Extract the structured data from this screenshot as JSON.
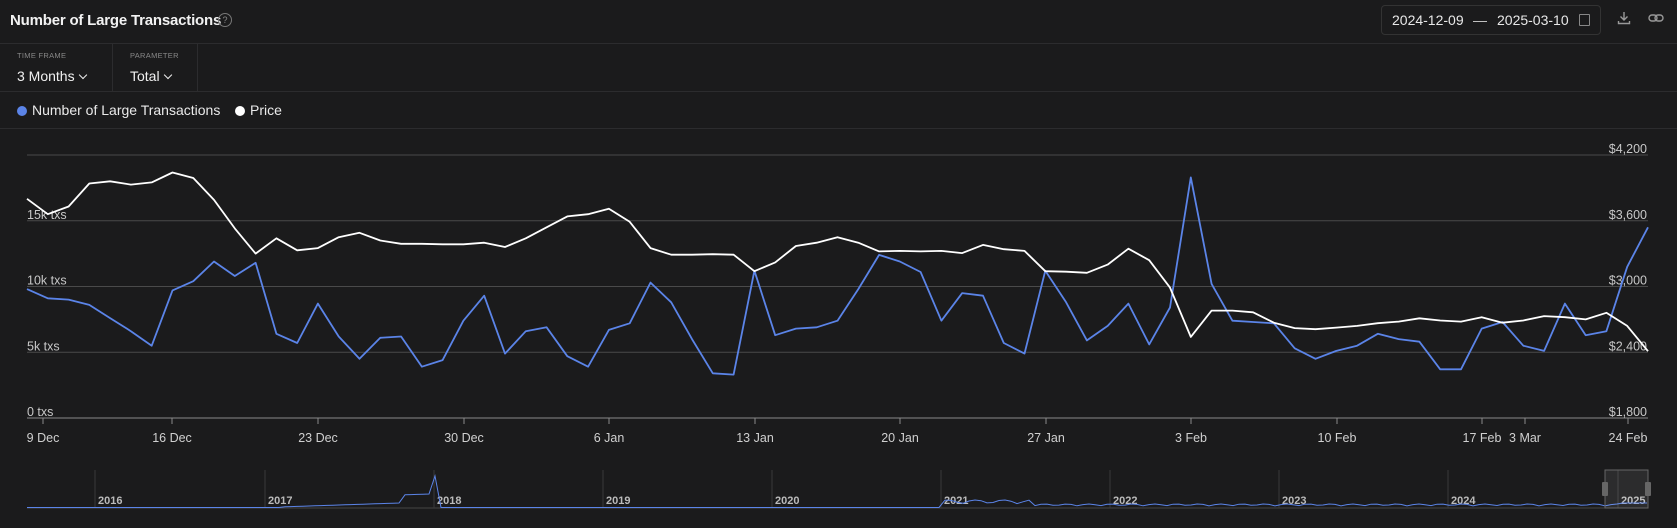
{
  "header": {
    "title": "Number of Large Transactions",
    "help_icon": "question-circle-icon",
    "date_from": "2024-12-09",
    "date_sep": "—",
    "date_to": "2025-03-10",
    "calendar_icon": "calendar-icon",
    "download_icon": "download-icon",
    "link_icon": "link-icon"
  },
  "controls": {
    "time_frame": {
      "label": "TIME FRAME",
      "value": "3 Months"
    },
    "parameter": {
      "label": "PARAMETER",
      "value": "Total"
    }
  },
  "colors": {
    "transactions": "#5b84e8",
    "price": "#ffffff",
    "background": "#1b1b1c",
    "grid": "#555555"
  },
  "chart_data": {
    "type": "line",
    "legend": [
      "Number of Large Transactions",
      "Price"
    ],
    "x_ticks": [
      "9 Dec",
      "16 Dec",
      "23 Dec",
      "30 Dec",
      "6 Jan",
      "13 Jan",
      "20 Jan",
      "27 Jan",
      "3 Feb",
      "10 Feb",
      "17 Feb",
      "3 Mar",
      "24 Feb"
    ],
    "y_left": {
      "ticks": [
        "0 txs",
        "5k txs",
        "10k txs",
        "15k txs"
      ],
      "range": [
        0,
        20000
      ]
    },
    "y_right": {
      "ticks": [
        "$1,800",
        "$2,400",
        "$3,000",
        "$3,600",
        "$4,200"
      ],
      "range": [
        1800,
        4200
      ]
    },
    "series": [
      {
        "name": "Number of Large Transactions",
        "axis": "left",
        "values": [
          9800,
          9100,
          9000,
          8600,
          7600,
          6600,
          5500,
          9700,
          10400,
          11900,
          10800,
          11800,
          6400,
          5700,
          8700,
          6200,
          4500,
          6100,
          6200,
          3900,
          4400,
          7400,
          9300,
          4900,
          6600,
          6900,
          4700,
          3900,
          6700,
          7200,
          10300,
          8800,
          6000,
          3400,
          3300,
          11200,
          6300,
          6800,
          6900,
          7400,
          9800,
          12400,
          11900,
          11100,
          7400,
          9500,
          9300,
          5700,
          4900,
          11200,
          8800,
          5900,
          7000,
          8700,
          5600,
          8400,
          18300,
          10200,
          7400,
          7300,
          7200,
          5300,
          4500,
          5100,
          5500,
          6400,
          6000,
          5800,
          3700,
          3700,
          6800,
          7300,
          5500,
          5100,
          8700,
          6300,
          6600,
          11500,
          14500
        ]
      },
      {
        "name": "Price",
        "axis": "right",
        "values": [
          3800,
          3660,
          3730,
          3940,
          3960,
          3930,
          3950,
          4040,
          3990,
          3790,
          3530,
          3300,
          3440,
          3330,
          3350,
          3450,
          3490,
          3420,
          3390,
          3390,
          3385,
          3385,
          3400,
          3360,
          3440,
          3540,
          3640,
          3660,
          3710,
          3590,
          3350,
          3290,
          3290,
          3295,
          3290,
          3140,
          3220,
          3370,
          3400,
          3450,
          3400,
          3320,
          3325,
          3320,
          3325,
          3305,
          3380,
          3340,
          3325,
          3140,
          3135,
          3125,
          3200,
          3345,
          3240,
          2990,
          2540,
          2780,
          2780,
          2765,
          2670,
          2620,
          2610,
          2625,
          2640,
          2665,
          2680,
          2710,
          2690,
          2680,
          2720,
          2670,
          2690,
          2730,
          2720,
          2700,
          2760,
          2640,
          2410
        ]
      }
    ],
    "grid": true
  },
  "navigator": {
    "years": [
      "2016",
      "2017",
      "2018",
      "2019",
      "2020",
      "2021",
      "2022",
      "2023",
      "2024",
      "2025"
    ]
  }
}
